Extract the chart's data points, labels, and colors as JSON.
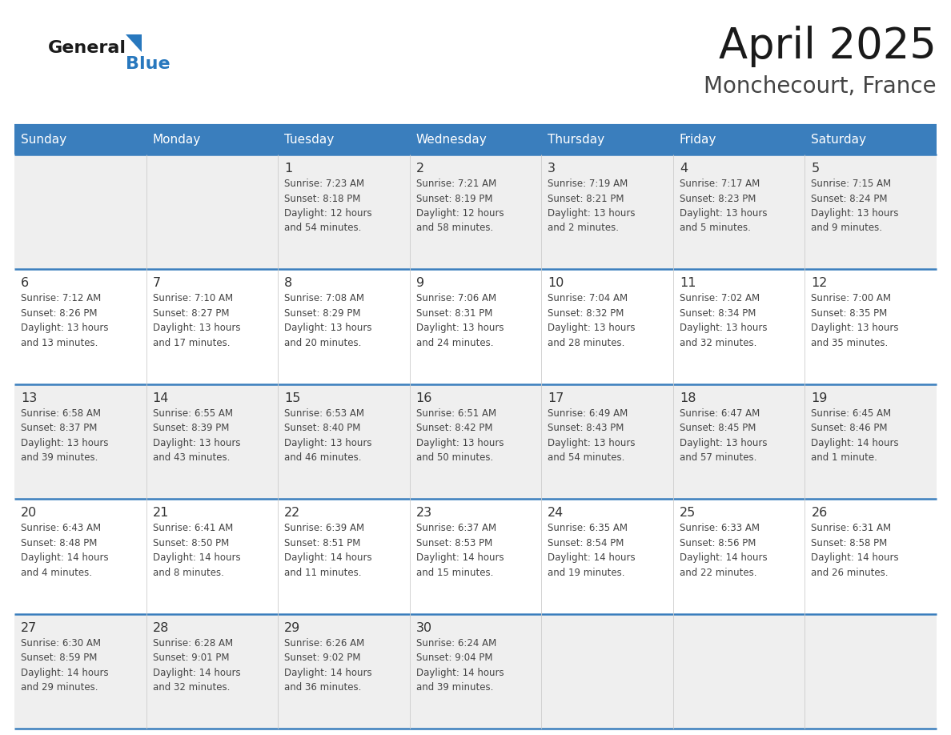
{
  "title": "April 2025",
  "subtitle": "Monchecourt, France",
  "days_of_week": [
    "Sunday",
    "Monday",
    "Tuesday",
    "Wednesday",
    "Thursday",
    "Friday",
    "Saturday"
  ],
  "header_bg": "#3A7EBD",
  "header_text_color": "#FFFFFF",
  "cell_bg_odd": "#EFEFEF",
  "cell_bg_even": "#FFFFFF",
  "cell_text_color": "#444444",
  "day_num_color": "#333333",
  "border_color": "#3A7EBD",
  "logo_text_color": "#1a1a1a",
  "logo_blue_color": "#2878BE",
  "weeks": [
    [
      {
        "day": null,
        "info": null
      },
      {
        "day": null,
        "info": null
      },
      {
        "day": "1",
        "info": "Sunrise: 7:23 AM\nSunset: 8:18 PM\nDaylight: 12 hours\nand 54 minutes."
      },
      {
        "day": "2",
        "info": "Sunrise: 7:21 AM\nSunset: 8:19 PM\nDaylight: 12 hours\nand 58 minutes."
      },
      {
        "day": "3",
        "info": "Sunrise: 7:19 AM\nSunset: 8:21 PM\nDaylight: 13 hours\nand 2 minutes."
      },
      {
        "day": "4",
        "info": "Sunrise: 7:17 AM\nSunset: 8:23 PM\nDaylight: 13 hours\nand 5 minutes."
      },
      {
        "day": "5",
        "info": "Sunrise: 7:15 AM\nSunset: 8:24 PM\nDaylight: 13 hours\nand 9 minutes."
      }
    ],
    [
      {
        "day": "6",
        "info": "Sunrise: 7:12 AM\nSunset: 8:26 PM\nDaylight: 13 hours\nand 13 minutes."
      },
      {
        "day": "7",
        "info": "Sunrise: 7:10 AM\nSunset: 8:27 PM\nDaylight: 13 hours\nand 17 minutes."
      },
      {
        "day": "8",
        "info": "Sunrise: 7:08 AM\nSunset: 8:29 PM\nDaylight: 13 hours\nand 20 minutes."
      },
      {
        "day": "9",
        "info": "Sunrise: 7:06 AM\nSunset: 8:31 PM\nDaylight: 13 hours\nand 24 minutes."
      },
      {
        "day": "10",
        "info": "Sunrise: 7:04 AM\nSunset: 8:32 PM\nDaylight: 13 hours\nand 28 minutes."
      },
      {
        "day": "11",
        "info": "Sunrise: 7:02 AM\nSunset: 8:34 PM\nDaylight: 13 hours\nand 32 minutes."
      },
      {
        "day": "12",
        "info": "Sunrise: 7:00 AM\nSunset: 8:35 PM\nDaylight: 13 hours\nand 35 minutes."
      }
    ],
    [
      {
        "day": "13",
        "info": "Sunrise: 6:58 AM\nSunset: 8:37 PM\nDaylight: 13 hours\nand 39 minutes."
      },
      {
        "day": "14",
        "info": "Sunrise: 6:55 AM\nSunset: 8:39 PM\nDaylight: 13 hours\nand 43 minutes."
      },
      {
        "day": "15",
        "info": "Sunrise: 6:53 AM\nSunset: 8:40 PM\nDaylight: 13 hours\nand 46 minutes."
      },
      {
        "day": "16",
        "info": "Sunrise: 6:51 AM\nSunset: 8:42 PM\nDaylight: 13 hours\nand 50 minutes."
      },
      {
        "day": "17",
        "info": "Sunrise: 6:49 AM\nSunset: 8:43 PM\nDaylight: 13 hours\nand 54 minutes."
      },
      {
        "day": "18",
        "info": "Sunrise: 6:47 AM\nSunset: 8:45 PM\nDaylight: 13 hours\nand 57 minutes."
      },
      {
        "day": "19",
        "info": "Sunrise: 6:45 AM\nSunset: 8:46 PM\nDaylight: 14 hours\nand 1 minute."
      }
    ],
    [
      {
        "day": "20",
        "info": "Sunrise: 6:43 AM\nSunset: 8:48 PM\nDaylight: 14 hours\nand 4 minutes."
      },
      {
        "day": "21",
        "info": "Sunrise: 6:41 AM\nSunset: 8:50 PM\nDaylight: 14 hours\nand 8 minutes."
      },
      {
        "day": "22",
        "info": "Sunrise: 6:39 AM\nSunset: 8:51 PM\nDaylight: 14 hours\nand 11 minutes."
      },
      {
        "day": "23",
        "info": "Sunrise: 6:37 AM\nSunset: 8:53 PM\nDaylight: 14 hours\nand 15 minutes."
      },
      {
        "day": "24",
        "info": "Sunrise: 6:35 AM\nSunset: 8:54 PM\nDaylight: 14 hours\nand 19 minutes."
      },
      {
        "day": "25",
        "info": "Sunrise: 6:33 AM\nSunset: 8:56 PM\nDaylight: 14 hours\nand 22 minutes."
      },
      {
        "day": "26",
        "info": "Sunrise: 6:31 AM\nSunset: 8:58 PM\nDaylight: 14 hours\nand 26 minutes."
      }
    ],
    [
      {
        "day": "27",
        "info": "Sunrise: 6:30 AM\nSunset: 8:59 PM\nDaylight: 14 hours\nand 29 minutes."
      },
      {
        "day": "28",
        "info": "Sunrise: 6:28 AM\nSunset: 9:01 PM\nDaylight: 14 hours\nand 32 minutes."
      },
      {
        "day": "29",
        "info": "Sunrise: 6:26 AM\nSunset: 9:02 PM\nDaylight: 14 hours\nand 36 minutes."
      },
      {
        "day": "30",
        "info": "Sunrise: 6:24 AM\nSunset: 9:04 PM\nDaylight: 14 hours\nand 39 minutes."
      },
      {
        "day": null,
        "info": null
      },
      {
        "day": null,
        "info": null
      },
      {
        "day": null,
        "info": null
      }
    ]
  ]
}
